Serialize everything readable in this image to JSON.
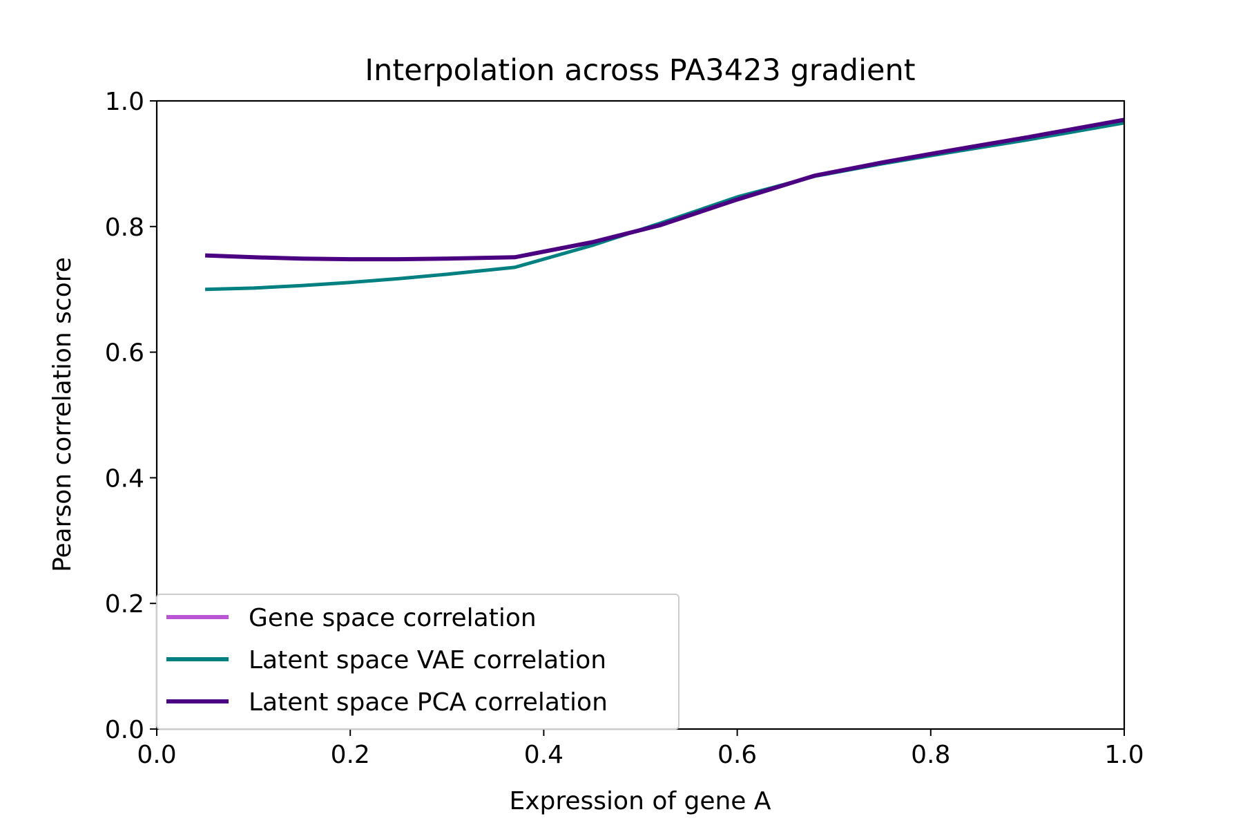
{
  "chart_data": {
    "type": "line",
    "title": "Interpolation across PA3423 gradient",
    "xlabel": "Expression of gene A",
    "ylabel": "Pearson correlation score",
    "xlim": [
      0.0,
      1.0
    ],
    "ylim": [
      0.0,
      1.0
    ],
    "xticks": [
      "0.0",
      "0.2",
      "0.4",
      "0.6",
      "0.8",
      "1.0"
    ],
    "yticks": [
      "0.0",
      "0.2",
      "0.4",
      "0.6",
      "0.8",
      "1.0"
    ],
    "grid": false,
    "legend_position": "lower-left",
    "series": [
      {
        "name": "Gene space correlation",
        "color": "#ba55d3",
        "x": [],
        "y": []
      },
      {
        "name": "Latent space VAE correlation",
        "color": "#008080",
        "x": [
          0.05,
          0.1,
          0.15,
          0.2,
          0.25,
          0.3,
          0.37,
          0.45,
          0.52,
          0.6,
          0.68,
          0.75,
          0.82,
          0.9,
          1.0
        ],
        "y": [
          0.7,
          0.702,
          0.706,
          0.711,
          0.717,
          0.724,
          0.735,
          0.77,
          0.805,
          0.847,
          0.88,
          0.9,
          0.918,
          0.938,
          0.965
        ]
      },
      {
        "name": "Latent space PCA correlation",
        "color": "#4b0082",
        "x": [
          0.05,
          0.1,
          0.15,
          0.2,
          0.25,
          0.3,
          0.37,
          0.45,
          0.52,
          0.6,
          0.68,
          0.75,
          0.82,
          0.9,
          1.0
        ],
        "y": [
          0.754,
          0.751,
          0.749,
          0.748,
          0.748,
          0.749,
          0.751,
          0.775,
          0.802,
          0.843,
          0.881,
          0.902,
          0.921,
          0.942,
          0.97
        ]
      }
    ]
  }
}
